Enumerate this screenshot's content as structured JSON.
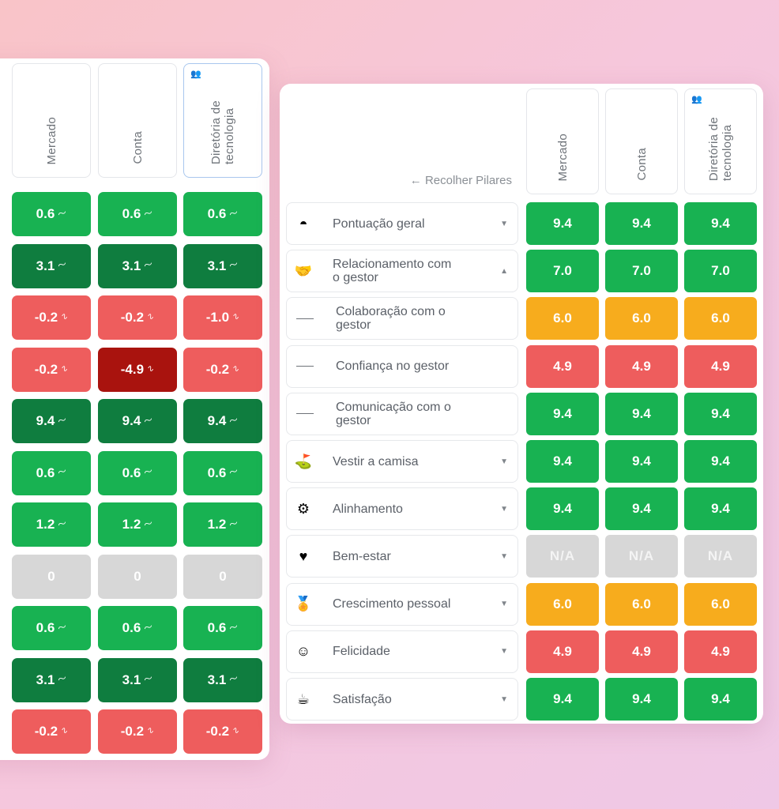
{
  "colors": {
    "green": "#18b252",
    "dark_green": "#0f7d3f",
    "red": "#ee5d5d",
    "dark_red": "#a9130e",
    "yellow": "#f7ac1d",
    "gray": "#d7d7d7"
  },
  "left_table": {
    "headers": [
      "Mercado",
      "Conta",
      "Diretória de\ntecnologia"
    ],
    "rows": [
      [
        {
          "v": "0.6",
          "c": "green",
          "t": "up"
        },
        {
          "v": "0.6",
          "c": "green",
          "t": "up"
        },
        {
          "v": "0.6",
          "c": "green",
          "t": "up"
        }
      ],
      [
        {
          "v": "3.1",
          "c": "dark_green",
          "t": "up"
        },
        {
          "v": "3.1",
          "c": "dark_green",
          "t": "up"
        },
        {
          "v": "3.1",
          "c": "dark_green",
          "t": "up"
        }
      ],
      [
        {
          "v": "-0.2",
          "c": "red",
          "t": "down"
        },
        {
          "v": "-0.2",
          "c": "red",
          "t": "down"
        },
        {
          "v": "-1.0",
          "c": "red",
          "t": "down"
        }
      ],
      [
        {
          "v": "-0.2",
          "c": "red",
          "t": "down"
        },
        {
          "v": "-4.9",
          "c": "dark_red",
          "t": "down"
        },
        {
          "v": "-0.2",
          "c": "red",
          "t": "down"
        }
      ],
      [
        {
          "v": "9.4",
          "c": "dark_green",
          "t": "up"
        },
        {
          "v": "9.4",
          "c": "dark_green",
          "t": "up"
        },
        {
          "v": "9.4",
          "c": "dark_green",
          "t": "up"
        }
      ],
      [
        {
          "v": "0.6",
          "c": "green",
          "t": "up"
        },
        {
          "v": "0.6",
          "c": "green",
          "t": "up"
        },
        {
          "v": "0.6",
          "c": "green",
          "t": "up"
        }
      ],
      [
        {
          "v": "1.2",
          "c": "green",
          "t": "up"
        },
        {
          "v": "1.2",
          "c": "green",
          "t": "up"
        },
        {
          "v": "1.2",
          "c": "green",
          "t": "up"
        }
      ],
      [
        {
          "v": "0",
          "c": "gray",
          "t": ""
        },
        {
          "v": "0",
          "c": "gray",
          "t": ""
        },
        {
          "v": "0",
          "c": "gray",
          "t": ""
        }
      ],
      [
        {
          "v": "0.6",
          "c": "green",
          "t": "up"
        },
        {
          "v": "0.6",
          "c": "green",
          "t": "up"
        },
        {
          "v": "0.6",
          "c": "green",
          "t": "up"
        }
      ],
      [
        {
          "v": "3.1",
          "c": "dark_green",
          "t": "up"
        },
        {
          "v": "3.1",
          "c": "dark_green",
          "t": "up"
        },
        {
          "v": "3.1",
          "c": "dark_green",
          "t": "up"
        }
      ],
      [
        {
          "v": "-0.2",
          "c": "red",
          "t": "down"
        },
        {
          "v": "-0.2",
          "c": "red",
          "t": "down"
        },
        {
          "v": "-0.2",
          "c": "red",
          "t": "down"
        }
      ]
    ]
  },
  "right_table": {
    "collapse_label": "← Recolher Pilares",
    "headers": [
      "Mercado",
      "Conta",
      "Diretória de\ntecnologia"
    ],
    "rows": [
      {
        "label": "Pontuação geral",
        "icon": "gauge-icon",
        "glyph": "◓",
        "caret": "down",
        "sub": false,
        "values": [
          "9.4",
          "9.4",
          "9.4"
        ],
        "color": "green"
      },
      {
        "label": "Relacionamento com\no gestor",
        "icon": "handshake-icon",
        "glyph": "🤝",
        "caret": "up",
        "sub": false,
        "values": [
          "7.0",
          "7.0",
          "7.0"
        ],
        "color": "green"
      },
      {
        "label": "Colaboração com o\ngestor",
        "icon": "",
        "glyph": "",
        "caret": "",
        "sub": true,
        "values": [
          "6.0",
          "6.0",
          "6.0"
        ],
        "color": "yellow"
      },
      {
        "label": "Confiança no gestor",
        "icon": "",
        "glyph": "",
        "caret": "",
        "sub": true,
        "values": [
          "4.9",
          "4.9",
          "4.9"
        ],
        "color": "red"
      },
      {
        "label": "Comunicação com o\ngestor",
        "icon": "",
        "glyph": "",
        "caret": "",
        "sub": true,
        "values": [
          "9.4",
          "9.4",
          "9.4"
        ],
        "color": "green"
      },
      {
        "label": "Vestir a camisa",
        "icon": "flag-mountain-icon",
        "glyph": "⛳",
        "caret": "down",
        "sub": false,
        "values": [
          "9.4",
          "9.4",
          "9.4"
        ],
        "color": "green"
      },
      {
        "label": "Alinhamento",
        "icon": "alignment-icon",
        "glyph": "⚙",
        "caret": "down",
        "sub": false,
        "values": [
          "9.4",
          "9.4",
          "9.4"
        ],
        "color": "green"
      },
      {
        "label": "Bem-estar",
        "icon": "heart-balloon-icon",
        "glyph": "♥",
        "caret": "down",
        "sub": false,
        "values": [
          "N/A",
          "N/A",
          "N/A"
        ],
        "color": "gray"
      },
      {
        "label": "Crescimento pessoal",
        "icon": "medal-icon",
        "glyph": "🏅",
        "caret": "down",
        "sub": false,
        "values": [
          "6.0",
          "6.0",
          "6.0"
        ],
        "color": "yellow"
      },
      {
        "label": "Felicidade",
        "icon": "smiley-icon",
        "glyph": "☺",
        "caret": "down",
        "sub": false,
        "values": [
          "4.9",
          "4.9",
          "4.9"
        ],
        "color": "red"
      },
      {
        "label": "Satisfação",
        "icon": "coffee-cup-icon",
        "glyph": "☕",
        "caret": "down",
        "sub": false,
        "values": [
          "9.4",
          "9.4",
          "9.4"
        ],
        "color": "green"
      }
    ]
  }
}
